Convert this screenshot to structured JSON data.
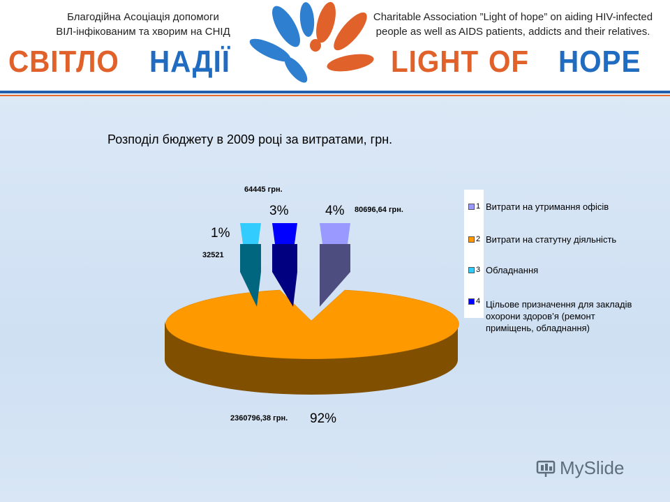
{
  "header": {
    "org_ua_line1": "Благодійна Асоціація допомоги",
    "org_ua_line2": "ВІЛ-інфікованим та хворим на СНІД",
    "org_en_line1": "Charitable Association ”Light of hope” on aiding  HIV-infected",
    "org_en_line2": "people as well as AIDS patients, addicts and their relatives.",
    "brand_ua_1": "СВІТЛО",
    "brand_ua_2": "НАДІЇ",
    "brand_en_1": "LIGHT",
    "brand_en_2": "OF",
    "brand_en_3": "HOPE",
    "color_orange": "#e0622a",
    "color_blue": "#1f6cc1"
  },
  "chart_data": {
    "type": "pie",
    "title": "Розподіл бюджету в 2009 році за витратами, грн.",
    "slices": [
      {
        "id": "1",
        "label": "Витрати на утримання офісів",
        "value": 80696.64,
        "value_label": "80696,64 грн.",
        "percent_label": "4%",
        "color": "#9999ff"
      },
      {
        "id": "2",
        "label": "Витрати на статутну діяльність",
        "value": 2360796.38,
        "value_label": "2360796,38 грн.",
        "percent_label": "92%",
        "color": "#ff9900"
      },
      {
        "id": "3",
        "label": "Обладнання",
        "value": 32521,
        "value_label": "32521",
        "percent_label": "1%",
        "color": "#33ccff"
      },
      {
        "id": "4",
        "label": "Цільове призначення для закладів охорони здоров’я (ремонт приміщень, обладнання)",
        "value": 64445,
        "value_label": "64445 грн.",
        "percent_label": "3%",
        "color": "#0000ff"
      }
    ],
    "legend_position": "right"
  },
  "watermark": "MySlide"
}
